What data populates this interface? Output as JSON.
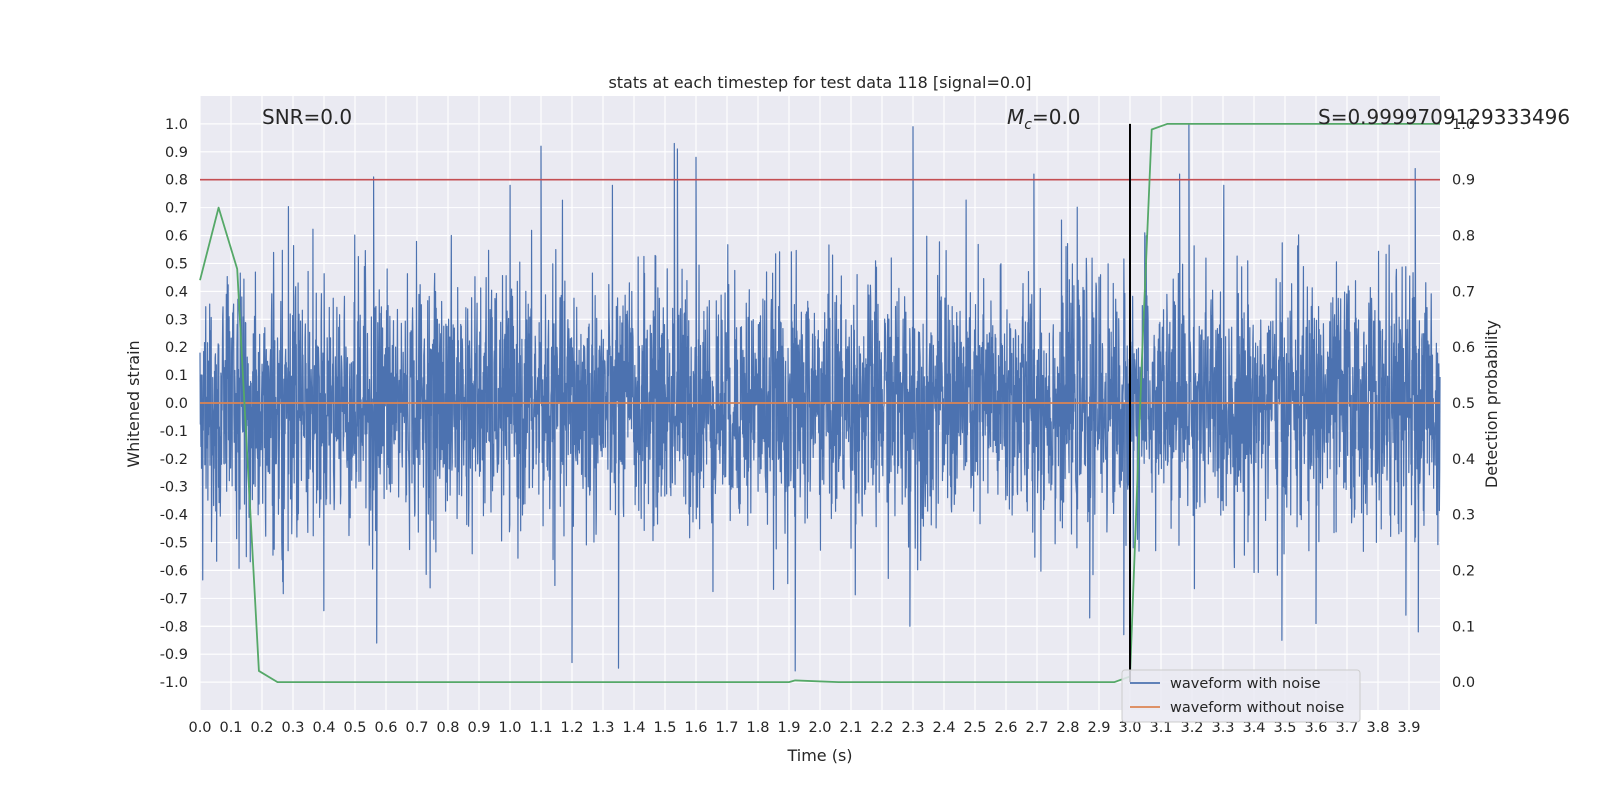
{
  "chart_data": {
    "type": "line",
    "title": "stats at each timestep for test data 118 [signal=0.0]",
    "xlabel": "Time (s)",
    "ylabel": "Whitened strain",
    "y2label": "Detection probability",
    "xlim": [
      0.0,
      4.0
    ],
    "ylim": [
      -1.1,
      1.1
    ],
    "y2lim": [
      -0.05,
      1.05
    ],
    "grid": true,
    "background": "#eaeaf2",
    "x_ticks": [
      "0.0",
      "0.1",
      "0.2",
      "0.3",
      "0.4",
      "0.5",
      "0.6",
      "0.7",
      "0.8",
      "0.9",
      "1.0",
      "1.1",
      "1.2",
      "1.3",
      "1.4",
      "1.5",
      "1.6",
      "1.7",
      "1.8",
      "1.9",
      "2.0",
      "2.1",
      "2.2",
      "2.3",
      "2.4",
      "2.5",
      "2.6",
      "2.7",
      "2.8",
      "2.9",
      "3.0",
      "3.1",
      "3.2",
      "3.3",
      "3.4",
      "3.5",
      "3.6",
      "3.7",
      "3.8",
      "3.9"
    ],
    "y_ticks": [
      "1.0",
      "0.9",
      "0.8",
      "0.7",
      "0.6",
      "0.5",
      "0.4",
      "0.3",
      "0.2",
      "0.1",
      "0.0",
      "-0.1",
      "-0.2",
      "-0.3",
      "-0.4",
      "-0.5",
      "-0.6",
      "-0.7",
      "-0.8",
      "-0.9",
      "-1.0"
    ],
    "y2_ticks": [
      "1.0",
      "0.9",
      "0.8",
      "0.7",
      "0.6",
      "0.5",
      "0.4",
      "0.3",
      "0.2",
      "0.1",
      "0.0"
    ],
    "annotations": {
      "snr": "SNR=0.0",
      "mc_symbol": "M",
      "mc_sub": "c",
      "mc_value": "=0.0",
      "s": "S=0.9999709129333496"
    },
    "legend": {
      "position": "lower-right",
      "entries": [
        "waveform with noise",
        "waveform without noise"
      ]
    },
    "series": [
      {
        "name": "waveform with noise",
        "color": "#4c72b0",
        "axis": "left",
        "kind": "noise",
        "n": 4096,
        "sigma": 0.22,
        "peaks": [
          {
            "x": 0.56,
            "y": 0.81
          },
          {
            "x": 0.57,
            "y": -0.86
          },
          {
            "x": 1.1,
            "y": 0.92
          },
          {
            "x": 1.2,
            "y": -0.93
          },
          {
            "x": 1.35,
            "y": -0.95
          },
          {
            "x": 1.53,
            "y": 0.93
          },
          {
            "x": 1.54,
            "y": 0.91
          },
          {
            "x": 1.6,
            "y": 0.88
          },
          {
            "x": 1.92,
            "y": -0.96
          },
          {
            "x": 2.3,
            "y": 0.99
          },
          {
            "x": 2.69,
            "y": 0.82
          },
          {
            "x": 3.16,
            "y": 0.82
          },
          {
            "x": 3.19,
            "y": 1.0
          },
          {
            "x": 3.49,
            "y": -0.85
          },
          {
            "x": 3.6,
            "y": -0.79
          },
          {
            "x": 3.92,
            "y": 0.84
          },
          {
            "x": 3.93,
            "y": -0.82
          },
          {
            "x": 2.29,
            "y": -0.8
          },
          {
            "x": 2.87,
            "y": -0.77
          },
          {
            "x": 2.98,
            "y": -0.83
          },
          {
            "x": 3.89,
            "y": -0.76
          }
        ]
      },
      {
        "name": "waveform without noise",
        "color": "#dd8452",
        "axis": "left",
        "x": [
          0.0,
          4.0
        ],
        "y": [
          0.0,
          0.0
        ]
      },
      {
        "name": "",
        "color": "#55a868",
        "axis": "right",
        "x": [
          0.0,
          0.06,
          0.12,
          0.19,
          0.25,
          0.5,
          1.0,
          1.5,
          1.9,
          1.92,
          2.06,
          2.5,
          2.95,
          3.0,
          3.04,
          3.07,
          3.12,
          3.5,
          4.0
        ],
        "y": [
          0.72,
          0.85,
          0.74,
          0.02,
          0.0,
          0.0,
          0.0,
          0.0,
          0.0,
          0.003,
          0.0,
          0.0,
          0.0,
          0.01,
          0.6,
          0.99,
          1.0,
          1.0,
          1.0
        ]
      }
    ],
    "hlines": [
      {
        "axis": "right",
        "y": 0.9,
        "color": "#c44e52"
      }
    ],
    "vlines": [
      {
        "x": 3.0,
        "y2_range": [
          0.0,
          1.0
        ],
        "color": "#000000"
      }
    ]
  }
}
